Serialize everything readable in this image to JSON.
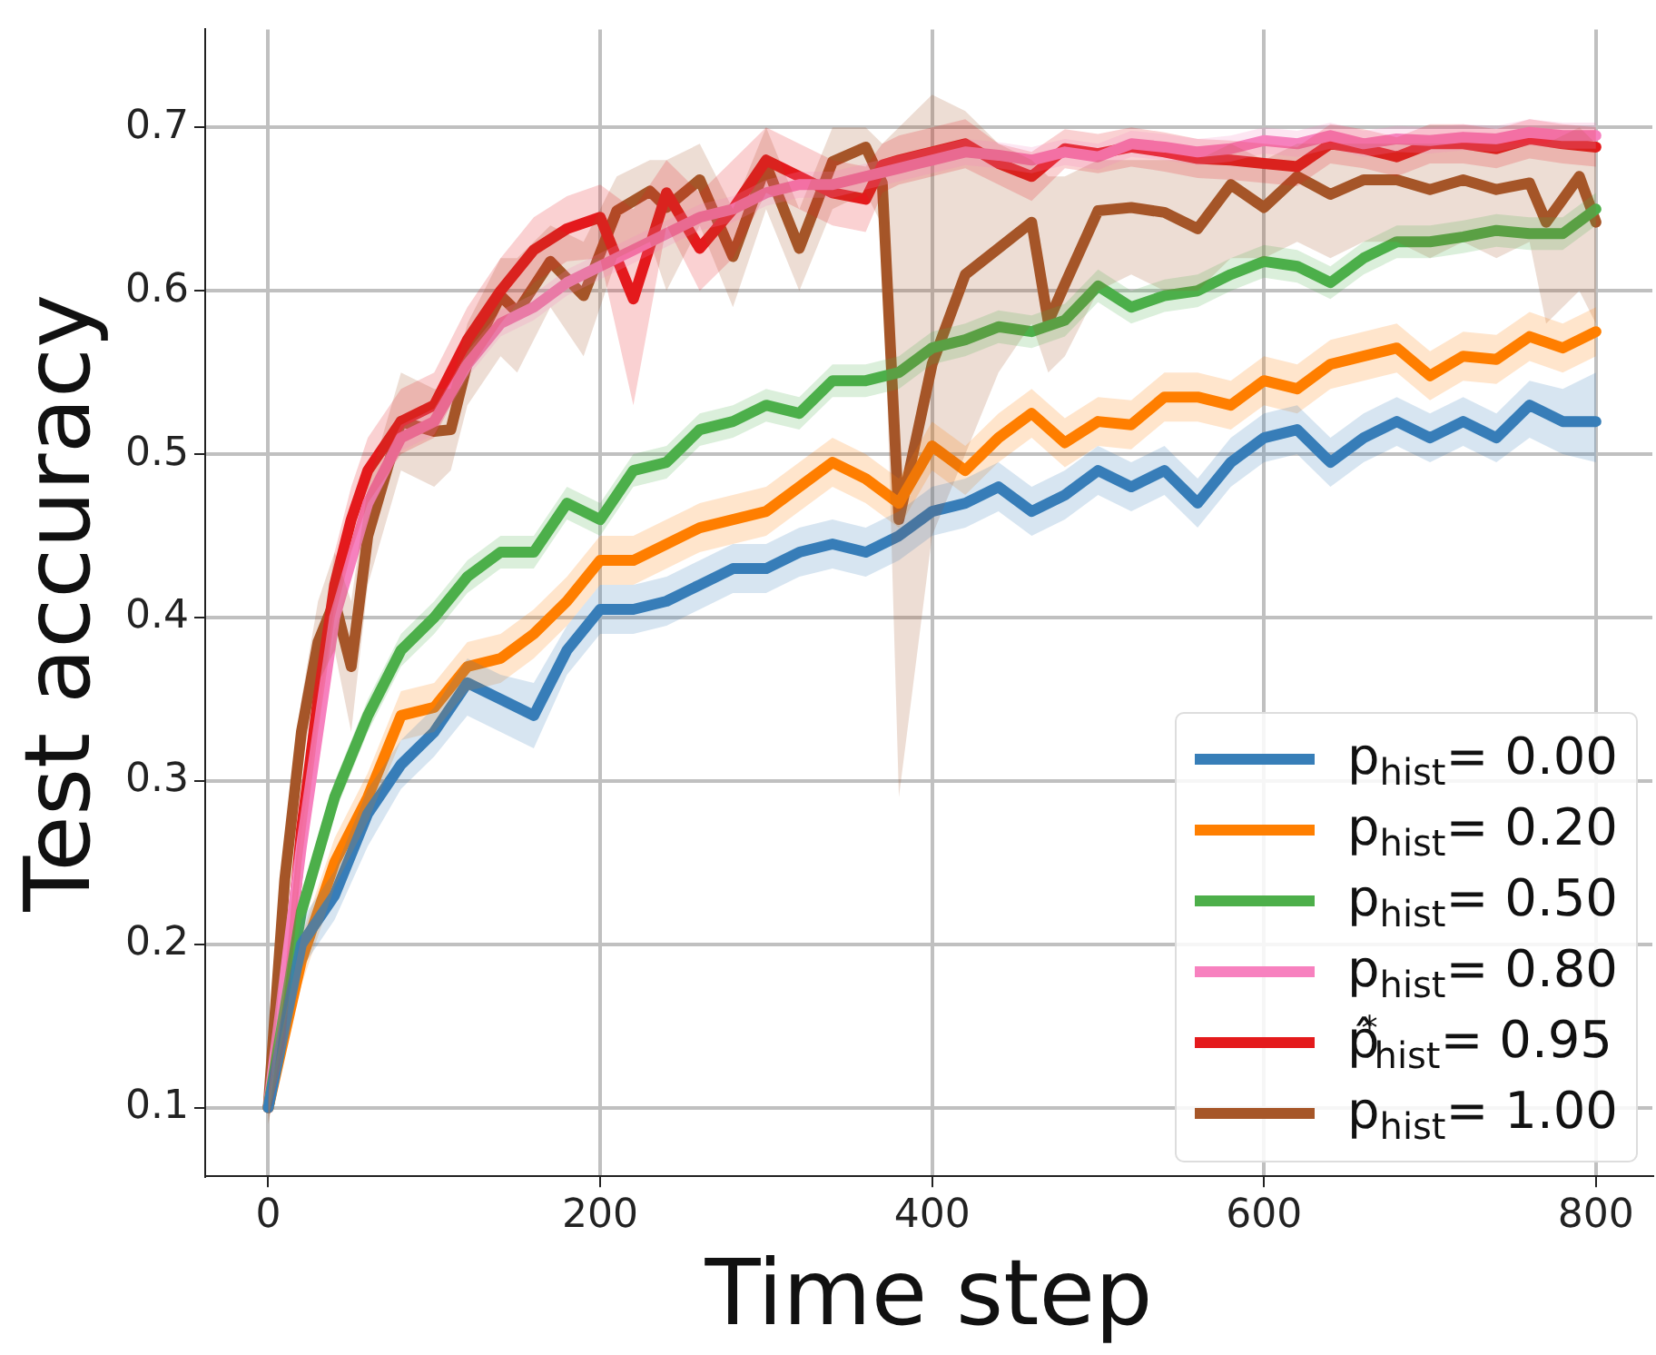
{
  "chart_data": {
    "type": "line",
    "xlabel": "Time step",
    "ylabel": "Test accuracy",
    "xlim": [
      -38,
      834
    ],
    "ylim": [
      0.058,
      0.76
    ],
    "xticks": [
      0,
      200,
      400,
      600,
      800
    ],
    "yticks": [
      0.1,
      0.2,
      0.3,
      0.4,
      0.5,
      0.6,
      0.7
    ],
    "grid": true,
    "legend": "bottom right",
    "marker": "none",
    "line_style": "solid",
    "x": [
      0,
      20,
      40,
      60,
      80,
      100,
      120,
      140,
      160,
      180,
      200,
      220,
      240,
      260,
      280,
      300,
      320,
      340,
      360,
      380,
      400,
      420,
      440,
      460,
      480,
      500,
      520,
      540,
      560,
      580,
      600,
      620,
      640,
      660,
      680,
      700,
      720,
      740,
      760,
      780,
      800
    ],
    "series": [
      {
        "name": "p$_{hist}$= 0.00",
        "color": "#377eb8",
        "values": [
          0.1,
          0.2,
          0.23,
          0.28,
          0.31,
          0.33,
          0.36,
          0.35,
          0.34,
          0.38,
          0.405,
          0.405,
          0.41,
          0.42,
          0.43,
          0.43,
          0.44,
          0.445,
          0.44,
          0.45,
          0.465,
          0.47,
          0.48,
          0.465,
          0.475,
          0.49,
          0.48,
          0.49,
          0.47,
          0.495,
          0.51,
          0.515,
          0.495,
          0.51,
          0.52,
          0.51,
          0.52,
          0.51,
          0.53,
          0.52,
          0.52
        ],
        "lower": [
          0.095,
          0.185,
          0.215,
          0.26,
          0.295,
          0.315,
          0.34,
          0.33,
          0.32,
          0.365,
          0.39,
          0.39,
          0.395,
          0.405,
          0.415,
          0.415,
          0.425,
          0.43,
          0.425,
          0.435,
          0.45,
          0.455,
          0.465,
          0.45,
          0.46,
          0.475,
          0.465,
          0.475,
          0.455,
          0.48,
          0.495,
          0.5,
          0.48,
          0.495,
          0.505,
          0.495,
          0.505,
          0.495,
          0.51,
          0.5,
          0.495
        ],
        "upper": [
          0.105,
          0.215,
          0.245,
          0.295,
          0.325,
          0.345,
          0.375,
          0.365,
          0.36,
          0.395,
          0.42,
          0.42,
          0.425,
          0.435,
          0.445,
          0.445,
          0.455,
          0.46,
          0.455,
          0.465,
          0.48,
          0.485,
          0.495,
          0.48,
          0.49,
          0.505,
          0.495,
          0.505,
          0.485,
          0.51,
          0.525,
          0.53,
          0.51,
          0.525,
          0.535,
          0.525,
          0.535,
          0.525,
          0.545,
          0.54,
          0.55
        ]
      },
      {
        "name": "p$_{hist}$= 0.20",
        "color": "#ff7f00",
        "values": [
          0.1,
          0.19,
          0.25,
          0.29,
          0.34,
          0.345,
          0.37,
          0.375,
          0.39,
          0.41,
          0.435,
          0.435,
          0.445,
          0.455,
          0.46,
          0.465,
          0.48,
          0.495,
          0.485,
          0.47,
          0.505,
          0.49,
          0.51,
          0.525,
          0.507,
          0.52,
          0.518,
          0.535,
          0.535,
          0.53,
          0.545,
          0.54,
          0.555,
          0.56,
          0.565,
          0.548,
          0.56,
          0.558,
          0.572,
          0.565,
          0.575
        ],
        "lower": [
          0.095,
          0.175,
          0.235,
          0.275,
          0.325,
          0.33,
          0.355,
          0.36,
          0.375,
          0.395,
          0.42,
          0.42,
          0.43,
          0.44,
          0.445,
          0.45,
          0.465,
          0.48,
          0.47,
          0.455,
          0.49,
          0.475,
          0.495,
          0.51,
          0.492,
          0.505,
          0.503,
          0.52,
          0.52,
          0.515,
          0.53,
          0.525,
          0.54,
          0.545,
          0.55,
          0.533,
          0.545,
          0.543,
          0.557,
          0.55,
          0.56
        ],
        "upper": [
          0.105,
          0.205,
          0.265,
          0.305,
          0.355,
          0.36,
          0.385,
          0.39,
          0.405,
          0.425,
          0.45,
          0.45,
          0.46,
          0.47,
          0.475,
          0.48,
          0.495,
          0.51,
          0.5,
          0.485,
          0.52,
          0.505,
          0.525,
          0.54,
          0.522,
          0.535,
          0.533,
          0.55,
          0.55,
          0.545,
          0.56,
          0.555,
          0.57,
          0.575,
          0.58,
          0.563,
          0.575,
          0.573,
          0.587,
          0.58,
          0.59
        ]
      },
      {
        "name": "p$_{hist}$= 0.50",
        "color": "#4daf4a",
        "values": [
          0.1,
          0.22,
          0.29,
          0.34,
          0.38,
          0.4,
          0.425,
          0.44,
          0.44,
          0.47,
          0.46,
          0.49,
          0.495,
          0.515,
          0.52,
          0.53,
          0.525,
          0.545,
          0.545,
          0.55,
          0.565,
          0.57,
          0.578,
          0.575,
          0.582,
          0.603,
          0.59,
          0.597,
          0.6,
          0.61,
          0.618,
          0.615,
          0.605,
          0.62,
          0.63,
          0.63,
          0.633,
          0.637,
          0.635,
          0.635,
          0.65
        ],
        "lower": [
          0.09,
          0.21,
          0.28,
          0.33,
          0.37,
          0.39,
          0.415,
          0.43,
          0.43,
          0.46,
          0.45,
          0.48,
          0.485,
          0.505,
          0.51,
          0.52,
          0.515,
          0.535,
          0.535,
          0.54,
          0.555,
          0.56,
          0.568,
          0.565,
          0.572,
          0.593,
          0.58,
          0.587,
          0.59,
          0.6,
          0.608,
          0.605,
          0.595,
          0.61,
          0.62,
          0.62,
          0.623,
          0.627,
          0.625,
          0.625,
          0.64
        ],
        "upper": [
          0.11,
          0.23,
          0.3,
          0.35,
          0.39,
          0.41,
          0.435,
          0.45,
          0.45,
          0.48,
          0.47,
          0.5,
          0.505,
          0.525,
          0.53,
          0.54,
          0.535,
          0.555,
          0.555,
          0.56,
          0.575,
          0.58,
          0.588,
          0.585,
          0.592,
          0.613,
          0.6,
          0.607,
          0.61,
          0.62,
          0.628,
          0.625,
          0.615,
          0.63,
          0.64,
          0.64,
          0.643,
          0.647,
          0.645,
          0.645,
          0.66
        ]
      },
      {
        "name": "p$_{hist}$= 0.80",
        "color": "#f781bf",
        "values": [
          0.1,
          0.26,
          0.4,
          0.47,
          0.51,
          0.52,
          0.555,
          0.58,
          0.59,
          0.605,
          0.615,
          0.625,
          0.635,
          0.645,
          0.65,
          0.66,
          0.665,
          0.665,
          0.67,
          0.675,
          0.68,
          0.685,
          0.683,
          0.68,
          0.685,
          0.682,
          0.69,
          0.688,
          0.685,
          0.687,
          0.692,
          0.69,
          0.695,
          0.69,
          0.693,
          0.692,
          0.694,
          0.693,
          0.697,
          0.695,
          0.695
        ],
        "lower": [
          0.092,
          0.252,
          0.392,
          0.462,
          0.502,
          0.512,
          0.547,
          0.572,
          0.582,
          0.597,
          0.607,
          0.617,
          0.627,
          0.637,
          0.642,
          0.652,
          0.657,
          0.657,
          0.662,
          0.667,
          0.672,
          0.677,
          0.675,
          0.672,
          0.677,
          0.674,
          0.682,
          0.68,
          0.677,
          0.679,
          0.684,
          0.682,
          0.687,
          0.682,
          0.685,
          0.684,
          0.686,
          0.685,
          0.689,
          0.687,
          0.687
        ],
        "upper": [
          0.108,
          0.268,
          0.408,
          0.478,
          0.518,
          0.528,
          0.563,
          0.588,
          0.598,
          0.613,
          0.623,
          0.633,
          0.643,
          0.653,
          0.658,
          0.668,
          0.673,
          0.673,
          0.678,
          0.683,
          0.688,
          0.693,
          0.691,
          0.688,
          0.693,
          0.69,
          0.698,
          0.696,
          0.693,
          0.695,
          0.7,
          0.698,
          0.703,
          0.698,
          0.701,
          0.7,
          0.702,
          0.701,
          0.705,
          0.703,
          0.703
        ]
      },
      {
        "name": "p̂$^{*}$$_{hist}$= 0.95",
        "color": "#e41a1c",
        "x": [
          0,
          10,
          20,
          30,
          40,
          50,
          60,
          80,
          100,
          120,
          140,
          160,
          180,
          200,
          220,
          240,
          260,
          280,
          300,
          320,
          340,
          360,
          370,
          380,
          400,
          420,
          440,
          460,
          480,
          500,
          520,
          540,
          560,
          580,
          600,
          620,
          640,
          660,
          680,
          700,
          720,
          740,
          760,
          780,
          800
        ],
        "values": [
          0.1,
          0.16,
          0.27,
          0.35,
          0.42,
          0.46,
          0.49,
          0.52,
          0.53,
          0.57,
          0.6,
          0.625,
          0.638,
          0.645,
          0.595,
          0.66,
          0.626,
          0.65,
          0.68,
          0.67,
          0.66,
          0.656,
          0.677,
          0.68,
          0.685,
          0.69,
          0.678,
          0.67,
          0.687,
          0.684,
          0.688,
          0.685,
          0.681,
          0.68,
          0.678,
          0.676,
          0.69,
          0.687,
          0.682,
          0.69,
          0.69,
          0.687,
          0.693,
          0.69,
          0.688
        ],
        "lower": [
          0.09,
          0.14,
          0.25,
          0.33,
          0.4,
          0.44,
          0.47,
          0.5,
          0.51,
          0.55,
          0.58,
          0.605,
          0.618,
          0.62,
          0.53,
          0.64,
          0.6,
          0.62,
          0.66,
          0.65,
          0.64,
          0.636,
          0.66,
          0.665,
          0.67,
          0.675,
          0.665,
          0.655,
          0.675,
          0.672,
          0.676,
          0.673,
          0.669,
          0.668,
          0.666,
          0.664,
          0.678,
          0.675,
          0.67,
          0.678,
          0.678,
          0.675,
          0.681,
          0.678,
          0.676
        ],
        "upper": [
          0.11,
          0.18,
          0.29,
          0.37,
          0.44,
          0.48,
          0.51,
          0.54,
          0.55,
          0.59,
          0.62,
          0.645,
          0.658,
          0.665,
          0.65,
          0.68,
          0.66,
          0.68,
          0.7,
          0.69,
          0.68,
          0.676,
          0.69,
          0.695,
          0.7,
          0.705,
          0.69,
          0.685,
          0.699,
          0.696,
          0.7,
          0.697,
          0.693,
          0.692,
          0.69,
          0.688,
          0.702,
          0.699,
          0.694,
          0.702,
          0.702,
          0.699,
          0.705,
          0.702,
          0.7
        ]
      },
      {
        "name": "p$_{hist}$= 1.00",
        "color": "#a65628",
        "x": [
          0,
          10,
          20,
          30,
          40,
          50,
          60,
          80,
          100,
          110,
          120,
          140,
          150,
          170,
          190,
          210,
          230,
          240,
          260,
          280,
          300,
          320,
          340,
          360,
          370,
          380,
          400,
          420,
          440,
          460,
          470,
          480,
          500,
          520,
          540,
          560,
          580,
          600,
          620,
          640,
          660,
          680,
          700,
          720,
          740,
          760,
          770,
          790,
          800
        ],
        "values": [
          0.1,
          0.24,
          0.33,
          0.385,
          0.41,
          0.37,
          0.45,
          0.52,
          0.514,
          0.515,
          0.556,
          0.597,
          0.587,
          0.618,
          0.597,
          0.649,
          0.661,
          0.651,
          0.668,
          0.621,
          0.677,
          0.626,
          0.679,
          0.688,
          0.666,
          0.46,
          0.555,
          0.61,
          0.626,
          0.642,
          0.581,
          0.604,
          0.649,
          0.651,
          0.648,
          0.638,
          0.665,
          0.651,
          0.67,
          0.659,
          0.668,
          0.668,
          0.662,
          0.668,
          0.662,
          0.666,
          0.642,
          0.67,
          0.642
        ],
        "lower": [
          0.09,
          0.22,
          0.31,
          0.36,
          0.38,
          0.33,
          0.42,
          0.49,
          0.48,
          0.49,
          0.53,
          0.56,
          0.55,
          0.59,
          0.56,
          0.62,
          0.63,
          0.6,
          0.64,
          0.59,
          0.65,
          0.6,
          0.65,
          0.66,
          0.64,
          0.29,
          0.45,
          0.5,
          0.55,
          0.58,
          0.55,
          0.56,
          0.6,
          0.61,
          0.6,
          0.6,
          0.62,
          0.62,
          0.63,
          0.62,
          0.63,
          0.63,
          0.62,
          0.63,
          0.62,
          0.63,
          0.58,
          0.6,
          0.58
        ],
        "upper": [
          0.11,
          0.26,
          0.35,
          0.41,
          0.44,
          0.41,
          0.48,
          0.55,
          0.54,
          0.54,
          0.58,
          0.62,
          0.62,
          0.64,
          0.63,
          0.67,
          0.68,
          0.68,
          0.69,
          0.65,
          0.7,
          0.65,
          0.7,
          0.7,
          0.69,
          0.7,
          0.72,
          0.71,
          0.69,
          0.68,
          0.67,
          0.67,
          0.68,
          0.68,
          0.68,
          0.68,
          0.69,
          0.68,
          0.69,
          0.69,
          0.69,
          0.69,
          0.69,
          0.69,
          0.69,
          0.69,
          0.69,
          0.7,
          0.69
        ]
      }
    ]
  }
}
